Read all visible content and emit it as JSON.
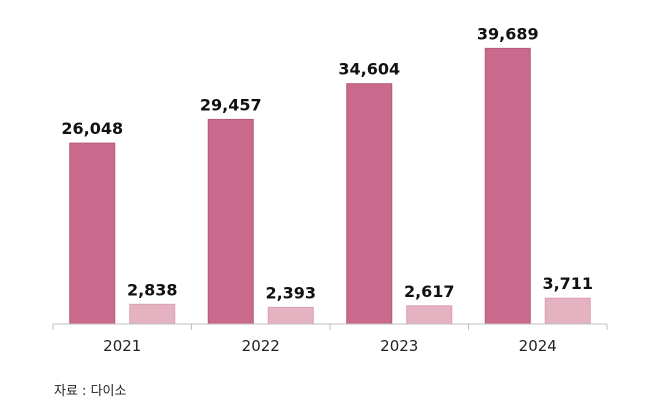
{
  "chart_data": {
    "type": "bar",
    "categories": [
      "2021",
      "2022",
      "2023",
      "2024"
    ],
    "series": [
      {
        "values": [
          26048,
          29457,
          34604,
          39689
        ],
        "labels": [
          "26,048",
          "29,457",
          "34,604",
          "39,689"
        ],
        "color": "#c96a8c"
      },
      {
        "values": [
          2838,
          2393,
          2617,
          3711
        ],
        "labels": [
          "2,838",
          "2,393",
          "2,617",
          "3,711"
        ],
        "color": "#e4b2c0"
      }
    ],
    "ylim": [
      0,
      43200
    ],
    "grid": false,
    "legend": "none"
  },
  "source": "자료 : 다이소"
}
